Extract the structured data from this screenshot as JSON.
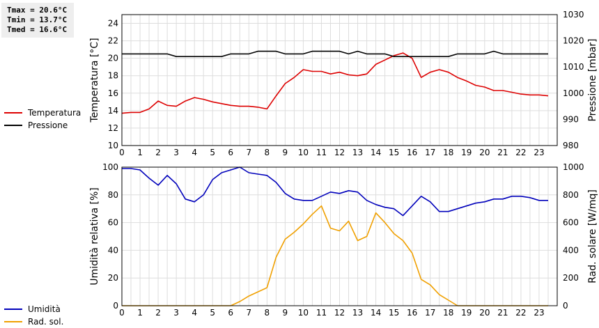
{
  "stats": {
    "tmax": "Tmax = 20.6°C",
    "tmin": "Tmin = 13.7°C",
    "tmed": "Tmed = 16.6°C"
  },
  "colors": {
    "temperature": "#dd0000",
    "pressure": "#000000",
    "humidity": "#0000bb",
    "radiation": "#f0a000",
    "grid": "#dddddd"
  },
  "chart_data": [
    {
      "type": "line",
      "xlim": [
        0,
        24
      ],
      "xticks": [
        "0",
        "1",
        "2",
        "3",
        "4",
        "5",
        "6",
        "7",
        "8",
        "9",
        "10",
        "11",
        "12",
        "13",
        "14",
        "15",
        "16",
        "17",
        "18",
        "19",
        "20",
        "21",
        "22",
        "23"
      ],
      "ylabel": "Temperatura [°C]",
      "ylim": [
        10,
        25
      ],
      "yticks": [
        "10",
        "12",
        "14",
        "16",
        "18",
        "20",
        "22",
        "24"
      ],
      "y2label": "Pressione [mbar]",
      "y2lim": [
        980,
        1030
      ],
      "y2ticks": [
        "980",
        "990",
        "1000",
        "1010",
        "1020",
        "1030"
      ],
      "grid": true,
      "legend_position": "left",
      "series": [
        {
          "name": "Temperatura",
          "axis": "left",
          "x": [
            0,
            0.5,
            1,
            1.5,
            2,
            2.5,
            3,
            3.5,
            4,
            4.5,
            5,
            5.5,
            6,
            6.5,
            7,
            7.5,
            8,
            8.5,
            9,
            9.5,
            10,
            10.5,
            11,
            11.5,
            12,
            12.5,
            13,
            13.5,
            14,
            14.5,
            15,
            15.5,
            16,
            16.5,
            17,
            17.5,
            18,
            18.5,
            19,
            19.5,
            20,
            20.5,
            21,
            21.5,
            22,
            22.5,
            23,
            23.5
          ],
          "values": [
            13.7,
            13.8,
            13.8,
            14.2,
            15.1,
            14.6,
            14.5,
            15.1,
            15.5,
            15.3,
            15.0,
            14.8,
            14.6,
            14.5,
            14.5,
            14.4,
            14.2,
            15.7,
            17.1,
            17.8,
            18.7,
            18.5,
            18.5,
            18.2,
            18.4,
            18.1,
            18.0,
            18.2,
            19.3,
            19.8,
            20.3,
            20.6,
            20.0,
            17.8,
            18.4,
            18.7,
            18.4,
            17.8,
            17.4,
            16.9,
            16.7,
            16.3,
            16.3,
            16.1,
            15.9,
            15.8,
            15.8,
            15.7
          ]
        },
        {
          "name": "Pressione",
          "axis": "right",
          "x": [
            0,
            0.5,
            1,
            1.5,
            2,
            2.5,
            3,
            3.5,
            4,
            4.5,
            5,
            5.5,
            6,
            6.5,
            7,
            7.5,
            8,
            8.5,
            9,
            9.5,
            10,
            10.5,
            11,
            11.5,
            12,
            12.5,
            13,
            13.5,
            14,
            14.5,
            15,
            15.5,
            16,
            16.5,
            17,
            17.5,
            18,
            18.5,
            19,
            19.5,
            20,
            20.5,
            21,
            21.5,
            22,
            22.5,
            23,
            23.5
          ],
          "values": [
            1015,
            1015,
            1015,
            1015,
            1015,
            1015,
            1014,
            1014,
            1014,
            1014,
            1014,
            1014,
            1015,
            1015,
            1015,
            1016,
            1016,
            1016,
            1015,
            1015,
            1015,
            1016,
            1016,
            1016,
            1016,
            1015,
            1016,
            1015,
            1015,
            1015,
            1014,
            1014,
            1014,
            1014,
            1014,
            1014,
            1014,
            1015,
            1015,
            1015,
            1015,
            1016,
            1015,
            1015,
            1015,
            1015,
            1015,
            1015
          ]
        }
      ]
    },
    {
      "type": "line",
      "xlim": [
        0,
        24
      ],
      "xticks": [
        "0",
        "1",
        "2",
        "3",
        "4",
        "5",
        "6",
        "7",
        "8",
        "9",
        "10",
        "11",
        "12",
        "13",
        "14",
        "15",
        "16",
        "17",
        "18",
        "19",
        "20",
        "21",
        "22",
        "23"
      ],
      "ylabel": "Umidità relativa [%]",
      "ylim": [
        0,
        100
      ],
      "yticks": [
        "0",
        "20",
        "40",
        "60",
        "80",
        "100"
      ],
      "y2label": "Rad. solare [W/mq]",
      "y2lim": [
        0,
        1000
      ],
      "y2ticks": [
        "0",
        "200",
        "400",
        "600",
        "800",
        "1000"
      ],
      "grid": true,
      "legend_position": "left",
      "series": [
        {
          "name": "Umidità",
          "axis": "left",
          "x": [
            0,
            0.5,
            1,
            1.5,
            2,
            2.5,
            3,
            3.5,
            4,
            4.5,
            5,
            5.5,
            6,
            6.5,
            7,
            7.5,
            8,
            8.5,
            9,
            9.5,
            10,
            10.5,
            11,
            11.5,
            12,
            12.5,
            13,
            13.5,
            14,
            14.5,
            15,
            15.5,
            16,
            16.5,
            17,
            17.5,
            18,
            18.5,
            19,
            19.5,
            20,
            20.5,
            21,
            21.5,
            22,
            22.5,
            23,
            23.5
          ],
          "values": [
            99,
            99,
            98,
            92,
            87,
            94,
            88,
            77,
            75,
            80,
            91,
            96,
            98,
            100,
            96,
            95,
            94,
            89,
            81,
            77,
            76,
            76,
            79,
            82,
            81,
            83,
            82,
            76,
            73,
            71,
            70,
            65,
            72,
            79,
            75,
            68,
            68,
            70,
            72,
            74,
            75,
            77,
            77,
            79,
            79,
            78,
            76,
            76
          ]
        },
        {
          "name": "Rad. sol.",
          "axis": "right",
          "x": [
            0,
            0.5,
            1,
            1.5,
            2,
            2.5,
            3,
            3.5,
            4,
            4.5,
            5,
            5.5,
            6,
            6.5,
            7,
            7.5,
            8,
            8.5,
            9,
            9.5,
            10,
            10.5,
            11,
            11.5,
            12,
            12.5,
            13,
            13.5,
            14,
            14.5,
            15,
            15.5,
            16,
            16.5,
            17,
            17.5,
            18,
            18.5,
            19,
            19.5,
            20,
            20.5,
            21,
            21.5,
            22,
            22.5,
            23,
            23.5
          ],
          "values": [
            0,
            0,
            0,
            0,
            0,
            0,
            0,
            0,
            0,
            0,
            0,
            0,
            0,
            30,
            70,
            100,
            130,
            350,
            480,
            530,
            590,
            660,
            720,
            560,
            540,
            610,
            470,
            500,
            670,
            600,
            520,
            470,
            380,
            190,
            150,
            80,
            40,
            0,
            0,
            0,
            0,
            0,
            0,
            0,
            0,
            0,
            0,
            0
          ]
        }
      ]
    }
  ]
}
